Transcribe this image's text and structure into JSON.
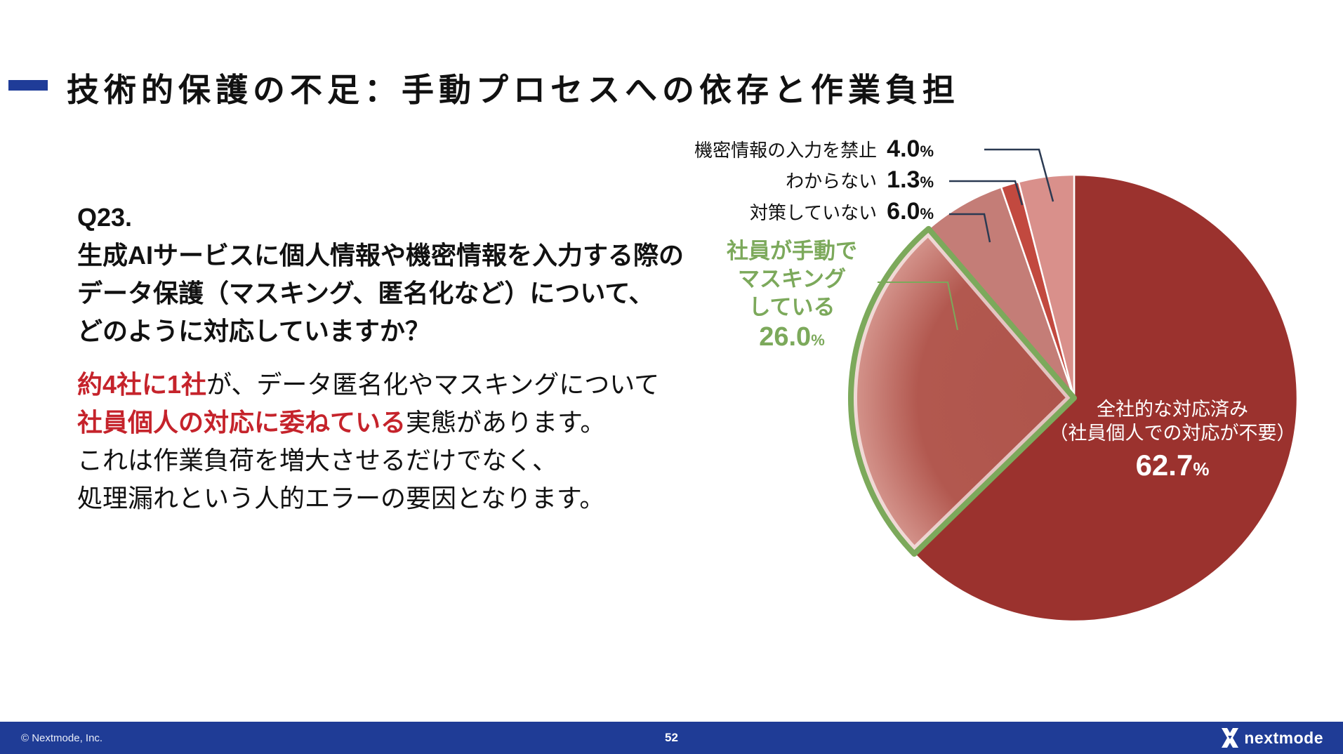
{
  "slide": {
    "title": "技術的保護の不足：手動プロセスへの依存と作業負担",
    "question": {
      "heading": "Q23.",
      "line1": "生成AIサービスに個人情報や機密情報を入力する際の",
      "line2": "データ保護（マスキング、匿名化など）について、",
      "line3": "どのように対応していますか？"
    },
    "analysis": {
      "seg1_red": "約4社に1社",
      "seg1_black": "が、データ匿名化やマスキングについて",
      "seg2_red": "社員個人の対応に委ねている",
      "seg2_black": "実態があります。",
      "line3": "これは作業負荷を増大させるだけでなく、",
      "line4": "処理漏れという人的エラーの要因となります。"
    }
  },
  "chart_data": {
    "type": "pie",
    "title": "",
    "unit": "%",
    "start": "12-o'clock, clockwise",
    "slices": [
      {
        "label": "全社的な対応済み（社員個人での対応が不要）",
        "label_lines": [
          "全社的な対応済み",
          "（社員個人での対応が不要）"
        ],
        "value": 62.7,
        "pct": "62.7",
        "color": "#9B322E"
      },
      {
        "label": "社員が手動でマスキングしている",
        "label_lines": [
          "社員が手動で",
          "マスキング",
          "している"
        ],
        "value": 26.0,
        "pct": "26.0",
        "color": "#B2584F",
        "outline_color": "#7CA95B"
      },
      {
        "label": "対策していない",
        "value": 6.0,
        "pct": "6.0",
        "color": "#C47D77"
      },
      {
        "label": "わからない",
        "value": 1.3,
        "pct": "1.3",
        "color": "#C2493F"
      },
      {
        "label": "機密情報の入力を禁止",
        "value": 4.0,
        "pct": "4.0",
        "color": "#D9908B"
      }
    ]
  },
  "footer": {
    "copyright": "© Nextmode, Inc.",
    "page": "52",
    "logo_text": "nextmode"
  },
  "colors": {
    "accent_navy": "#1F3C98",
    "accent_red": "#C5232B",
    "accent_green": "#7CA95B",
    "leader_line": "#2B3A52",
    "footer_bg": "#1F3C96"
  }
}
